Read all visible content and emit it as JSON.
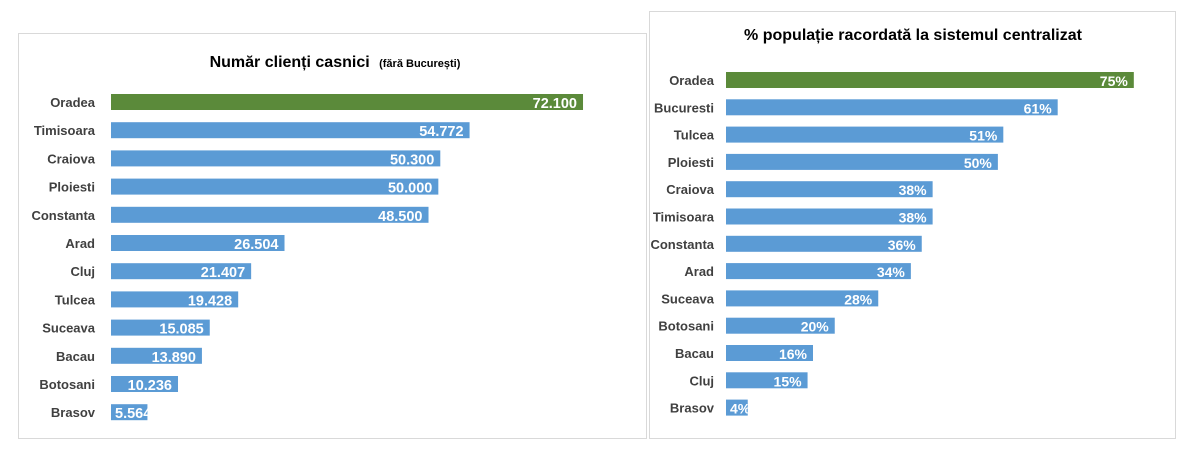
{
  "chart_data": [
    {
      "type": "bar",
      "orientation": "horizontal",
      "title": "Număr clienți casnici",
      "subtitle": "(fără București)",
      "categories": [
        "Oradea",
        "Timisoara",
        "Craiova",
        "Ploiesti",
        "Constanta",
        "Arad",
        "Cluj",
        "Tulcea",
        "Suceava",
        "Bacau",
        "Botosani",
        "Brasov"
      ],
      "values": [
        72100,
        54772,
        50300,
        50000,
        48500,
        26504,
        21407,
        19428,
        15085,
        13890,
        10236,
        5564
      ],
      "labels": [
        "72.100",
        "54.772",
        "50.300",
        "50.000",
        "48.500",
        "26.504",
        "21.407",
        "19.428",
        "15.085",
        "13.890",
        "10.236",
        "5.564"
      ],
      "xlim": [
        0,
        75000
      ],
      "grid": false,
      "colors": {
        "highlight": "#5b8a3a",
        "bar": "#5b9bd5"
      }
    },
    {
      "type": "bar",
      "orientation": "horizontal",
      "title": "% populație racordată la sistemul centralizat",
      "categories": [
        "Oradea",
        "Bucuresti",
        "Tulcea",
        "Ploiesti",
        "Craiova",
        "Timisoara",
        "Constanta",
        "Arad",
        "Suceava",
        "Botosani",
        "Bacau",
        "Cluj",
        "Brasov"
      ],
      "values": [
        75,
        61,
        51,
        50,
        38,
        38,
        36,
        34,
        28,
        20,
        16,
        15,
        4
      ],
      "labels": [
        "75%",
        "61%",
        "51%",
        "50%",
        "38%",
        "38%",
        "36%",
        "34%",
        "28%",
        "20%",
        "16%",
        "15%",
        "4%"
      ],
      "xlim": [
        0,
        80
      ],
      "grid": false,
      "colors": {
        "highlight": "#5b8a3a",
        "bar": "#5b9bd5"
      }
    }
  ]
}
